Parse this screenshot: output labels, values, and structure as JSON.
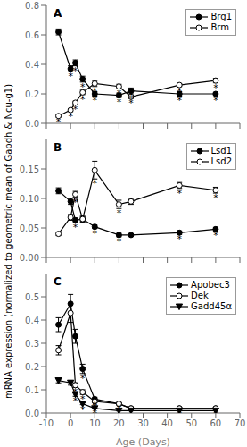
{
  "chart_data": [
    {
      "type": "line",
      "title": "A",
      "legend": "upper right",
      "grid": false,
      "tick_labels": "y",
      "xlim": [
        -10,
        70
      ],
      "xticks": [
        -10,
        0,
        10,
        20,
        30,
        40,
        50,
        60,
        70
      ],
      "ylim": [
        0.0,
        0.8
      ],
      "yticks": [
        {
          "value": 0.0,
          "label": "0.0"
        },
        0.2,
        0.4,
        0.6,
        0.8
      ],
      "x": [
        -5,
        0,
        2,
        5,
        10,
        20,
        25,
        45,
        60
      ],
      "series": [
        {
          "name": "Brg1",
          "color": "black",
          "marker": "filled_circle",
          "line_style": "solid",
          "values": [
            0.62,
            0.37,
            0.41,
            0.3,
            0.2,
            0.19,
            0.22,
            0.2,
            0.2
          ],
          "yerr": [
            0.02,
            0.02,
            0.02,
            0.02,
            0.015,
            0.015,
            0.02,
            0.015,
            0.01
          ],
          "significance": [
            null,
            "*",
            "*",
            "*",
            "*",
            "*",
            "*",
            "*",
            "*"
          ]
        },
        {
          "name": "Brm",
          "color": "black",
          "marker": "open_circle",
          "line_style": "solid",
          "values": [
            0.05,
            0.09,
            0.14,
            0.21,
            0.27,
            0.25,
            0.18,
            0.26,
            0.29
          ],
          "yerr": [
            0.008,
            0.01,
            0.01,
            0.015,
            0.02,
            0.015,
            0.01,
            0.01,
            0.015
          ],
          "significance": [
            "*",
            "*",
            "*",
            "*",
            "*",
            "*",
            "*",
            "*",
            "*"
          ]
        }
      ]
    },
    {
      "type": "line",
      "title": "B",
      "legend": "upper right",
      "grid": false,
      "tick_labels": "y",
      "ylabel": "mRNA expression (normalized to geometric mean of Gapdh & Ncu-g1)",
      "xlim": [
        -10,
        70
      ],
      "xticks": [
        -10,
        0,
        10,
        20,
        30,
        40,
        50,
        60,
        70
      ],
      "ylim": [
        0.0,
        0.2
      ],
      "yticks": [
        {
          "value": 0.0,
          "label": "0.00"
        },
        0.05,
        {
          "value": 0.1,
          "label": "0.10"
        },
        0.15
      ],
      "x": [
        -5,
        0,
        2,
        5,
        10,
        20,
        25,
        45,
        60
      ],
      "series": [
        {
          "name": "Lsd1",
          "color": "black",
          "marker": "filled_circle",
          "line_style": "solid",
          "values": [
            0.113,
            0.095,
            0.063,
            0.065,
            0.052,
            0.038,
            0.038,
            0.042,
            0.048
          ],
          "yerr": [
            0.005,
            0.005,
            0.004,
            0.004,
            0.003,
            0.003,
            0.002,
            0.003,
            0.003
          ],
          "significance": [
            null,
            null,
            "*",
            null,
            "*",
            "*",
            null,
            "*",
            "*"
          ]
        },
        {
          "name": "Lsd2",
          "color": "black",
          "marker": "open_circle",
          "line_style": "solid",
          "values": [
            0.04,
            0.068,
            0.107,
            0.065,
            0.148,
            0.09,
            0.095,
            0.122,
            0.114
          ],
          "yerr": [
            0.003,
            0.005,
            0.005,
            0.005,
            0.015,
            0.007,
            0.005,
            0.005,
            0.005
          ],
          "significance": [
            null,
            null,
            "*",
            null,
            "*",
            "*",
            null,
            "*",
            "*"
          ]
        }
      ]
    },
    {
      "type": "line",
      "title": "C",
      "legend": "upper right",
      "grid": false,
      "xlabel": "Age (Days)",
      "xlim": [
        -10,
        70
      ],
      "xticks": [
        -10,
        0,
        10,
        20,
        30,
        40,
        50,
        60,
        70
      ],
      "ylim": [
        0.0,
        0.6
      ],
      "yticks": [
        {
          "value": 0.0,
          "label": "0.0"
        },
        0.1,
        0.2,
        0.3,
        0.4,
        0.5
      ],
      "x": [
        -5,
        0,
        2,
        5,
        10,
        20,
        25,
        45,
        60
      ],
      "series": [
        {
          "name": "Apobec3",
          "color": "black",
          "marker": "filled_circle",
          "line_style": "solid",
          "values": [
            0.38,
            0.47,
            0.33,
            0.19,
            0.06,
            0.04,
            0.02,
            0.02,
            0.02
          ],
          "yerr": [
            0.03,
            0.04,
            0.03,
            0.02,
            0.008,
            0.003,
            0.002,
            0.002,
            0.002
          ],
          "significance": [
            null,
            null,
            null,
            "*",
            "*",
            "*",
            null,
            null,
            null
          ]
        },
        {
          "name": "Dek",
          "color": "black",
          "marker": "open_circle",
          "line_style": "solid",
          "values": [
            0.27,
            0.43,
            0.12,
            0.09,
            0.05,
            0.04,
            0.02,
            0.02,
            0.02
          ],
          "yerr": [
            0.02,
            0.04,
            0.01,
            0.01,
            0.005,
            0.003,
            0.002,
            0.002,
            0.002
          ],
          "significance": [
            null,
            null,
            "*",
            "*",
            "*",
            null,
            null,
            "*",
            "*"
          ]
        },
        {
          "name": "Gadd45α",
          "color": "black",
          "marker": "filled_triangle_down",
          "line_style": "solid",
          "values": [
            0.14,
            0.13,
            0.08,
            0.04,
            0.02,
            0.01,
            0.01,
            0.01,
            0.01
          ],
          "yerr": [
            0.01,
            0.01,
            0.008,
            0.004,
            0.002,
            0.001,
            0.001,
            0.001,
            0.001
          ],
          "significance": [
            null,
            null,
            "*",
            "*",
            "*",
            "*",
            null,
            null,
            null
          ]
        }
      ]
    }
  ]
}
